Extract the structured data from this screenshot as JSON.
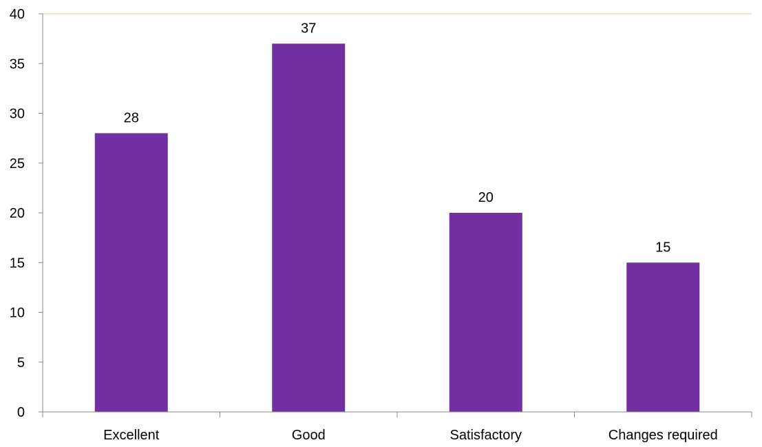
{
  "chart_data": {
    "type": "bar",
    "title": "",
    "xlabel": "",
    "ylabel": "",
    "categories": [
      "Excellent",
      "Good",
      "Satisfactory",
      "Changes required"
    ],
    "values": [
      28,
      37,
      20,
      15
    ],
    "ylim": [
      0,
      40
    ],
    "yticks": [
      0,
      5,
      10,
      15,
      20,
      25,
      30,
      35,
      40
    ],
    "yticks_labels": [
      "0",
      "5",
      "10",
      "15",
      "20",
      "25",
      "30",
      "35",
      "40"
    ],
    "data_labels": [
      "28",
      "37",
      "20",
      "15"
    ],
    "grid": false,
    "legend": "none",
    "colors": {
      "bar": "#7030A0",
      "top_line": "#F8D9B8",
      "axis": "#888888",
      "text": "#000000"
    }
  }
}
